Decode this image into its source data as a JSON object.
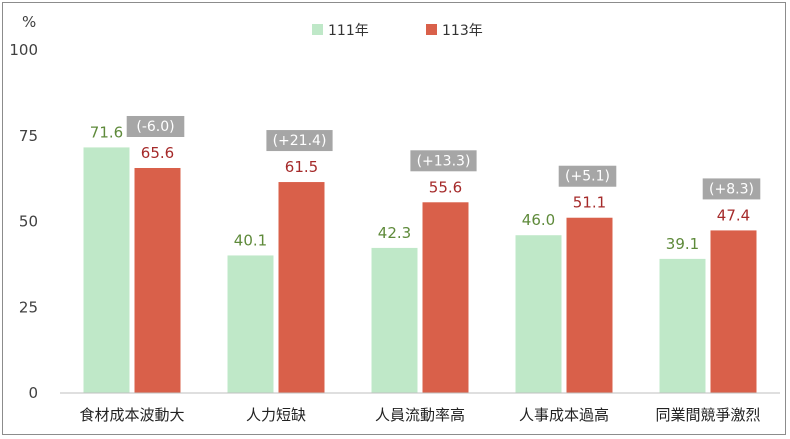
{
  "chart_data": {
    "type": "bar",
    "y_unit": "%",
    "ylim": [
      0,
      100
    ],
    "yticks": [
      0,
      25,
      50,
      75,
      100
    ],
    "categories": [
      "食材成本波動大",
      "人力短缺",
      "人員流動率高",
      "人事成本過高",
      "同業間競爭激烈"
    ],
    "series": [
      {
        "name": "111年",
        "values": [
          71.6,
          40.1,
          42.3,
          46.0,
          39.1
        ],
        "labels": [
          "71.6",
          "40.1",
          "42.3",
          "46.0",
          "39.1"
        ]
      },
      {
        "name": "113年",
        "values": [
          65.6,
          61.5,
          55.6,
          51.1,
          47.4
        ],
        "labels": [
          "65.6",
          "61.5",
          "55.6",
          "51.1",
          "47.4"
        ]
      }
    ],
    "change_labels": [
      "(-6.0)",
      "(+21.4)",
      "(+13.3)",
      "(+5.1)",
      "(+8.3)"
    ],
    "legend_position": "top-center",
    "grid": false,
    "colors": {
      "series_fill": [
        "#bfe8c8",
        "#d9604a"
      ],
      "series_label": [
        "#5e8a3a",
        "#a52a2a"
      ],
      "change_box": "#a6a6a6",
      "change_text": "#ffffff",
      "axis": "#bfbfbf",
      "tick_text": "#404040",
      "category_text": "#222222"
    }
  }
}
